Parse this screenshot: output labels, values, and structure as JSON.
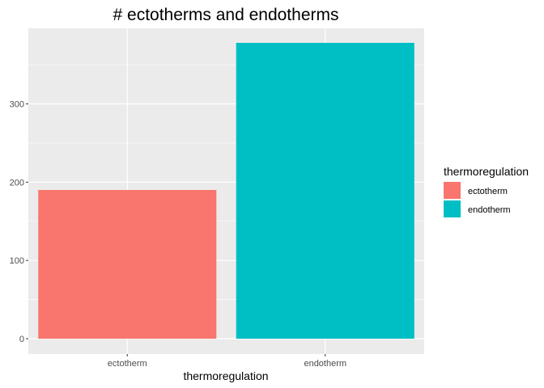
{
  "chart_data": {
    "type": "bar",
    "title": "# ectotherms and endotherms",
    "xlabel": "thermoregulation",
    "ylabel": "",
    "categories": [
      "ectotherm",
      "endotherm"
    ],
    "values": [
      190,
      378
    ],
    "colors": [
      "#F8766D",
      "#00BFC4"
    ],
    "ylim": [
      0,
      395
    ],
    "yticks": [
      0,
      100,
      200,
      300
    ],
    "grid": true,
    "legend": {
      "title": "thermoregulation",
      "placement": "right",
      "entries": [
        "ectotherm",
        "endotherm"
      ]
    }
  }
}
